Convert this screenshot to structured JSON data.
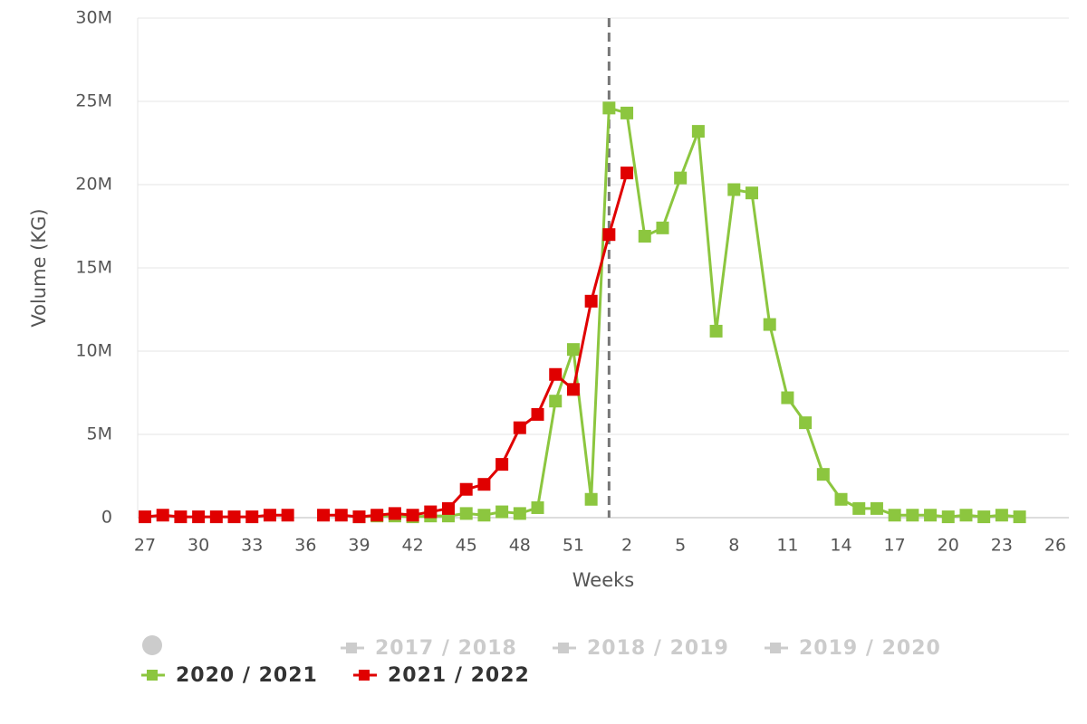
{
  "chart_data": {
    "type": "line",
    "x_label": "Weeks",
    "y_label": "Volume (KG)",
    "categories": [
      "27",
      null,
      null,
      "30",
      null,
      null,
      "33",
      null,
      null,
      "36",
      null,
      null,
      "39",
      null,
      null,
      "42",
      null,
      null,
      "45",
      null,
      null,
      "48",
      null,
      null,
      "51",
      null,
      null,
      "2",
      null,
      null,
      "5",
      null,
      null,
      "8",
      null,
      null,
      "11",
      null,
      null,
      "14",
      null,
      null,
      "17",
      null,
      null,
      "20",
      null,
      null,
      "23",
      null,
      null,
      "26"
    ],
    "ylim": [
      0,
      30000000
    ],
    "yticks": [
      0,
      {
        "value": 5000000,
        "label": "5M"
      },
      {
        "value": 10000000,
        "label": "10M"
      },
      {
        "value": 15000000,
        "label": "15M"
      },
      {
        "value": 20000000,
        "label": "20M"
      },
      {
        "value": 25000000,
        "label": "25M"
      },
      {
        "value": 30000000,
        "label": "30M"
      }
    ],
    "grid": true,
    "reference_category_index": 26,
    "hidden_series": [
      {
        "name": "2017 / 2018"
      },
      {
        "name": "2018 / 2019"
      },
      {
        "name": "2019 / 2020"
      }
    ],
    "series": [
      {
        "name": "2020 / 2021",
        "color": "#8cc63f",
        "values": [
          null,
          null,
          null,
          null,
          null,
          null,
          null,
          null,
          null,
          null,
          null,
          null,
          50000,
          100000,
          100000,
          50000,
          100000,
          100000,
          250000,
          150000,
          350000,
          250000,
          600000,
          7000000,
          10100000,
          1100000,
          24600000,
          24300000,
          16900000,
          17400000,
          20400000,
          23200000,
          11200000,
          19700000,
          19500000,
          11600000,
          7200000,
          5700000,
          2600000,
          1100000,
          550000,
          550000,
          150000,
          150000,
          150000,
          50000,
          150000,
          50000,
          150000,
          50000,
          null,
          null
        ]
      },
      {
        "name": "2021 / 2022",
        "color": "#e00000",
        "values": [
          50000,
          150000,
          50000,
          50000,
          50000,
          50000,
          50000,
          150000,
          150000,
          null,
          150000,
          150000,
          50000,
          150000,
          250000,
          150000,
          350000,
          550000,
          1700000,
          2000000,
          3200000,
          5400000,
          6200000,
          8600000,
          7700000,
          13000000,
          17000000,
          20700000,
          null,
          null,
          null,
          null,
          null,
          null,
          null,
          null,
          null,
          null,
          null,
          null,
          null,
          null,
          null,
          null,
          null,
          null,
          null,
          null,
          null,
          null,
          null,
          null
        ]
      }
    ]
  }
}
